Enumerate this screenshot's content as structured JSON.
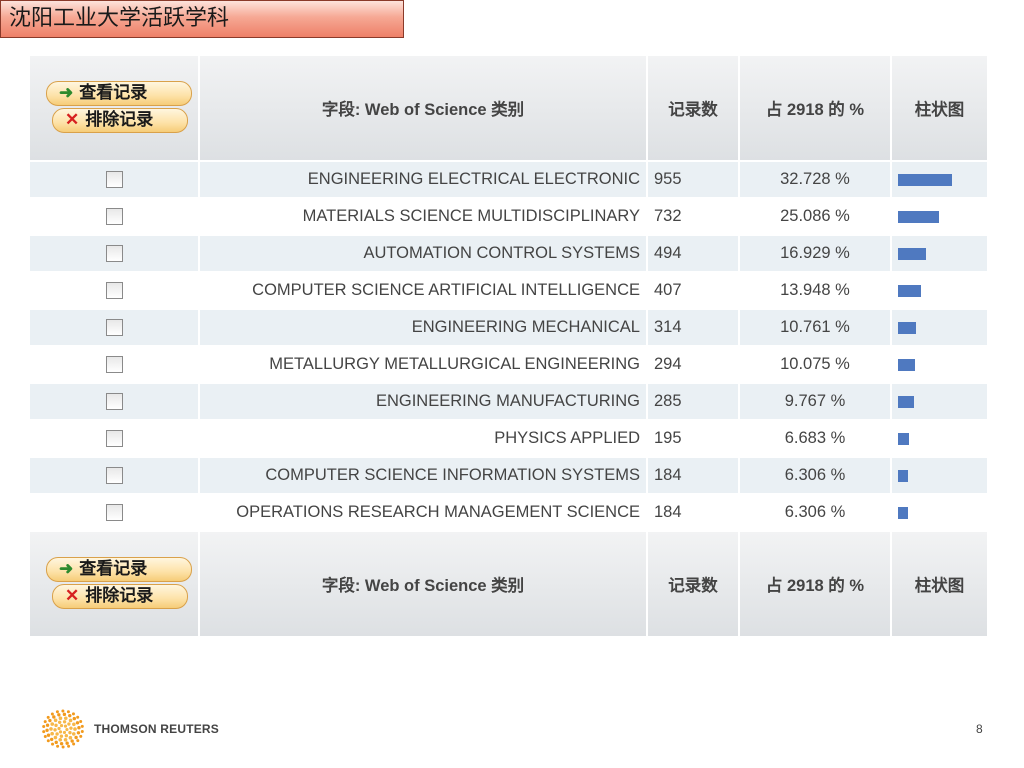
{
  "slide_title": "沈阳工业大学活跃学科",
  "buttons": {
    "view": "查看记录",
    "exclude": "排除记录"
  },
  "header": {
    "field": "字段: Web of Science 类别",
    "count": "记录数",
    "percent": "占 2918 的 %",
    "bar": "柱状图"
  },
  "colors": {
    "bar": "#4f79c0",
    "title_bg": "#f6a894",
    "row_alt": "#eaf0f4"
  },
  "rows": [
    {
      "category": "ENGINEERING ELECTRICAL ELECTRONIC",
      "count": "955",
      "percent": "32.728 %",
      "share": 32.728
    },
    {
      "category": "MATERIALS SCIENCE MULTIDISCIPLINARY",
      "count": "732",
      "percent": "25.086 %",
      "share": 25.086
    },
    {
      "category": "AUTOMATION CONTROL SYSTEMS",
      "count": "494",
      "percent": "16.929 %",
      "share": 16.929
    },
    {
      "category": "COMPUTER SCIENCE ARTIFICIAL INTELLIGENCE",
      "count": "407",
      "percent": "13.948 %",
      "share": 13.948
    },
    {
      "category": "ENGINEERING MECHANICAL",
      "count": "314",
      "percent": "10.761 %",
      "share": 10.761
    },
    {
      "category": "METALLURGY METALLURGICAL ENGINEERING",
      "count": "294",
      "percent": "10.075 %",
      "share": 10.075
    },
    {
      "category": "ENGINEERING MANUFACTURING",
      "count": "285",
      "percent": "9.767 %",
      "share": 9.767
    },
    {
      "category": "PHYSICS APPLIED",
      "count": "195",
      "percent": "6.683 %",
      "share": 6.683
    },
    {
      "category": "COMPUTER SCIENCE INFORMATION SYSTEMS",
      "count": "184",
      "percent": "6.306 %",
      "share": 6.306
    },
    {
      "category": "OPERATIONS RESEARCH MANAGEMENT SCIENCE",
      "count": "184",
      "percent": "6.306 %",
      "share": 6.306
    }
  ],
  "footer": {
    "logo_text": "THOMSON REUTERS",
    "page_number": "8"
  }
}
